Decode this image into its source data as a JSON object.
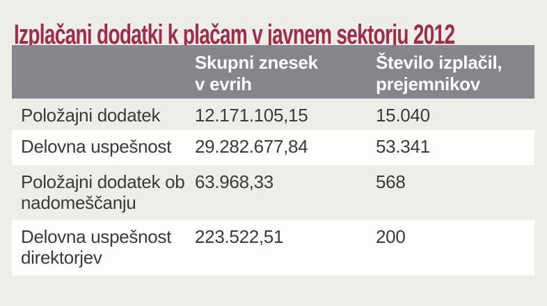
{
  "page": {
    "title": "Izplačani dodatki k plačam v javnem sektorju 2012",
    "background_color": "#EDEEE8",
    "title_color": "#A12B4A"
  },
  "table": {
    "header": {
      "col1": "",
      "col2": "Skupni znesek\nv evrih",
      "col3": "Število izplačil,\nprejemnikov",
      "background_color": "#85858A",
      "text_color": "#FFFFFF"
    },
    "rows": [
      {
        "label": "Položajni dodatek",
        "amount": "12.171.105,15",
        "count": "15.040"
      },
      {
        "label": "Delovna uspešnost",
        "amount": "29.282.677,84",
        "count": "53.341"
      },
      {
        "label": "Položajni dodatek ob nadomeščanju",
        "amount": "63.968,33",
        "count": "568"
      },
      {
        "label": "Delovna uspešnost direktorjev",
        "amount": "223.522,51",
        "count": "200"
      }
    ]
  },
  "chart_data": {
    "type": "table",
    "title": "Izplačani dodatki k plačam v javnem sektorju 2012",
    "columns": [
      "",
      "Skupni znesek v evrih",
      "Število izplačil, prejemnikov"
    ],
    "rows": [
      [
        "Položajni dodatek",
        "12.171.105,15",
        "15.040"
      ],
      [
        "Delovna uspešnost",
        "29.282.677,84",
        "53.341"
      ],
      [
        "Položajni dodatek ob nadomeščanju",
        "63.968,33",
        "568"
      ],
      [
        "Delovna uspešnost direktorjev",
        "223.522,51",
        "200"
      ]
    ],
    "values_numeric": {
      "amounts_eur": [
        12171105.15,
        29282677.84,
        63968.33,
        223522.51
      ],
      "payments_recipients": [
        15040,
        53341,
        568,
        200
      ]
    }
  }
}
